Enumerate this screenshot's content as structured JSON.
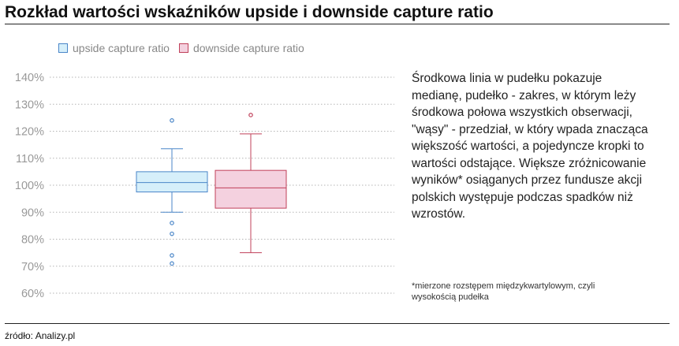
{
  "header": {
    "title": "Rozkład wartości wskaźników upside i downside capture ratio"
  },
  "footer": {
    "source": "źródło: Analizy.pl"
  },
  "side_text": {
    "description": "Środkowa linia w pudełku pokazuje medianę, pudełko - zakres, w którym leży środkowa połowa wszystkich obserwacji, \"wąsy\" - przedział, w który wpada znacząca większość wartości, a pojedyncze kropki to wartości odstające. Większe zróżnicowanie wyników* osiąganych przez fundusze akcji polskich występuje podczas spadków niż wzrostów.",
    "footnote": "*mierzone rozstępem międzykwartylowym, czyli wysokością pudełka"
  },
  "chart_data": {
    "type": "box",
    "ylim": [
      60,
      140
    ],
    "yticks": [
      "60%",
      "70%",
      "80%",
      "90%",
      "100%",
      "110%",
      "120%",
      "130%",
      "140%"
    ],
    "grid": true,
    "legend": {
      "placement": "top-left"
    },
    "series": [
      {
        "name": "upside capture ratio",
        "color": "#4a86c8",
        "fill": "#d6effa",
        "min": 90,
        "q1": 97.5,
        "median": 101,
        "q3": 105,
        "max": 113.5,
        "outliers": [
          124,
          86,
          82,
          74,
          71
        ]
      },
      {
        "name": "downside capture ratio",
        "color": "#c0405a",
        "fill": "#f4d1df",
        "min": 75,
        "q1": 91.5,
        "median": 99,
        "q3": 105.5,
        "max": 119,
        "outliers": [
          126
        ]
      }
    ]
  }
}
